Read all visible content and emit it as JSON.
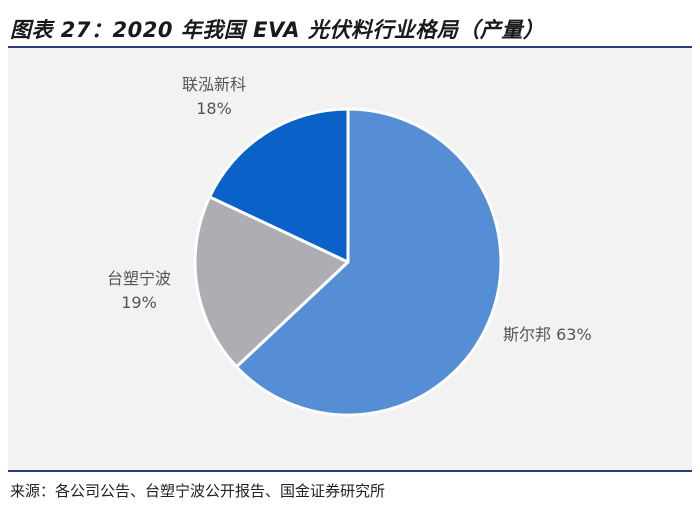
{
  "figure": {
    "title": "图表 27：2020 年我国 EVA 光伏料行业格局（产量）",
    "source": "来源：各公司公告、台塑宁波公开报告、国金证券研究所"
  },
  "chart_data": {
    "type": "pie",
    "title": "2020 年我国 EVA 光伏料行业格局（产量）",
    "slices": [
      {
        "name": "斯尔邦",
        "value": 63,
        "label": "63%",
        "color": "#568ed6"
      },
      {
        "name": "台塑宁波",
        "value": 19,
        "label": "19%",
        "color": "#adadb3"
      },
      {
        "name": "联泓新科",
        "value": 18,
        "label": "18%",
        "color": "#0a62c9"
      }
    ],
    "start": "12 o'clock",
    "direction": "clockwise",
    "legend": "none"
  }
}
